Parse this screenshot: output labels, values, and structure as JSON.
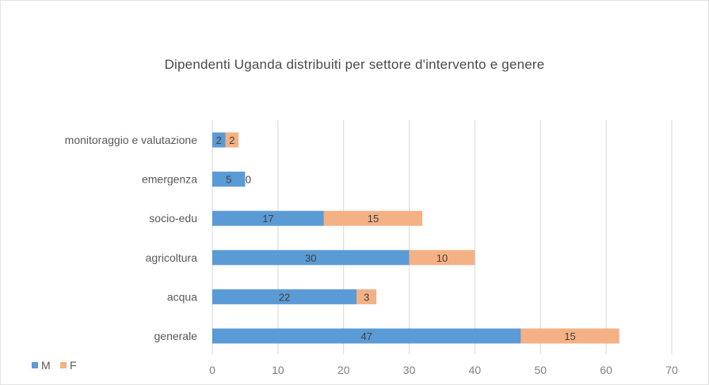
{
  "chart_data": {
    "type": "bar",
    "orientation": "horizontal",
    "stacked": true,
    "title": "Dipendenti  Uganda distribuiti  per settore  d'intervento  e genere",
    "categories": [
      "monitoraggio e valutazione",
      "emergenza",
      "socio-edu",
      "agricoltura",
      "acqua",
      "generale"
    ],
    "series": [
      {
        "name": "M",
        "values": [
          2,
          5,
          17,
          30,
          22,
          47
        ],
        "color": "#5b9bd5"
      },
      {
        "name": "F",
        "values": [
          2,
          0,
          15,
          10,
          3,
          15
        ],
        "color": "#f4b183"
      }
    ],
    "xlim": [
      0,
      70
    ],
    "xticks": [
      0,
      10,
      20,
      30,
      40,
      50,
      60,
      70
    ],
    "grid": true,
    "legend": "bottom-left"
  }
}
